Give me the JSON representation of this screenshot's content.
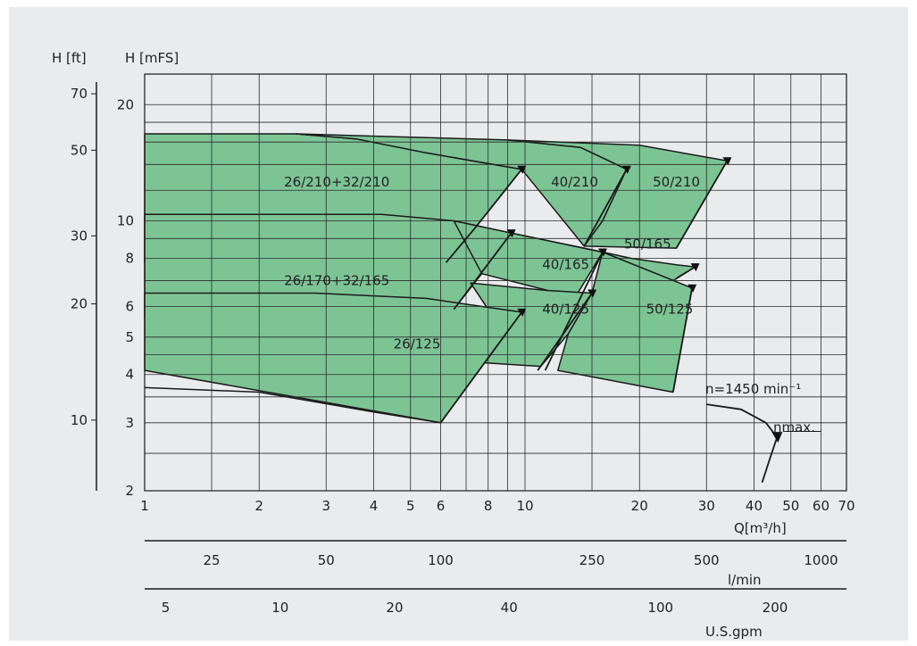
{
  "chart_data": {
    "type": "area",
    "title": "",
    "speed_label": "n=1450  min⁻¹",
    "eta_label": "ηmax.",
    "y_labels": {
      "ft": "H  [ft]",
      "mfs": "H  [mFS]"
    },
    "x_labels": {
      "m3h": "Q[m³/h]",
      "lmin": "l/min",
      "gpm": "U.S.gpm"
    },
    "x_scale": "log",
    "y_scale": "log",
    "xlim": [
      1,
      70
    ],
    "ylim": [
      2,
      24
    ],
    "grid": true,
    "x_ticks_m3h": [
      "1",
      "2",
      "3",
      "4",
      "5",
      "6",
      "8",
      "10",
      "20",
      "30",
      "40",
      "50",
      "60",
      "70"
    ],
    "y_ticks_mfs": [
      "20",
      "10",
      "8",
      "6",
      "5",
      "4",
      "3",
      "2"
    ],
    "y_ticks_ft": [
      "70",
      "50",
      "30",
      "20",
      "10"
    ],
    "x_ticks_lmin": [
      "25",
      "50",
      "100",
      "250",
      "500",
      "1000"
    ],
    "x_ticks_gpm": [
      "5",
      "10",
      "20",
      "40",
      "100",
      "200"
    ],
    "regions": [
      {
        "name": "26/210+32/210",
        "label_at": [
          3.2,
          12.6
        ],
        "outline": [
          [
            1,
            16.8
          ],
          [
            2.5,
            16.8
          ],
          [
            3.6,
            16.3
          ],
          [
            5.5,
            15
          ],
          [
            9.8,
            13.6
          ],
          [
            7.4,
            9.6
          ],
          [
            6.2,
            7.8
          ],
          [
            1,
            7.8
          ]
        ]
      },
      {
        "name": "40/210",
        "label_at": [
          13.5,
          12.6
        ],
        "outline": [
          [
            2.5,
            16.8
          ],
          [
            9,
            16.2
          ],
          [
            14,
            15.5
          ],
          [
            18.5,
            13.6
          ],
          [
            16,
            10
          ],
          [
            14.3,
            8.6
          ],
          [
            9.8,
            13.6
          ],
          [
            5.5,
            15
          ],
          [
            3.6,
            16.3
          ]
        ]
      },
      {
        "name": "50/210",
        "label_at": [
          25,
          12.6
        ],
        "outline": [
          [
            9,
            16.2
          ],
          [
            20,
            15.7
          ],
          [
            34,
            14.3
          ],
          [
            25,
            8.5
          ],
          [
            14.3,
            8.6
          ],
          [
            16,
            10
          ],
          [
            18.5,
            13.6
          ],
          [
            14,
            15.5
          ]
        ]
      },
      {
        "name": "26/170+32/165",
        "label_at": [
          3.2,
          7.0
        ],
        "outline": [
          [
            1,
            10.4
          ],
          [
            4.2,
            10.4
          ],
          [
            6.5,
            10.0
          ],
          [
            9.2,
            9.3
          ],
          [
            7.7,
            7.3
          ],
          [
            6.5,
            5.9
          ],
          [
            6.2,
            5.6
          ],
          [
            1,
            5.6
          ]
        ]
      },
      {
        "name": "40/165",
        "label_at": [
          12.8,
          7.7
        ],
        "outline": [
          [
            6.5,
            10.0
          ],
          [
            9.2,
            9.3
          ],
          [
            16,
            8.3
          ],
          [
            13.5,
            6.3
          ],
          [
            11.5,
            6.6
          ],
          [
            7.7,
            7.3
          ]
        ]
      },
      {
        "name": "50/165",
        "label_at": [
          21,
          8.7
        ],
        "outline": [
          [
            9.2,
            9.3
          ],
          [
            16,
            8.3
          ],
          [
            19,
            8.0
          ],
          [
            25,
            7.7
          ],
          [
            28,
            7.6
          ],
          [
            24.5,
            7.0
          ],
          [
            17,
            7.6
          ],
          [
            16,
            8.3
          ]
        ]
      },
      {
        "name": "40/125",
        "label_at": [
          12.8,
          5.9
        ],
        "outline": [
          [
            7.2,
            6.9
          ],
          [
            11.5,
            6.6
          ],
          [
            15,
            6.5
          ],
          [
            13,
            5.1
          ],
          [
            11,
            4.2
          ],
          [
            7.5,
            4.3
          ],
          [
            8.6,
            5.3
          ]
        ]
      },
      {
        "name": "50/125",
        "label_at": [
          24,
          5.9
        ],
        "outline": [
          [
            15,
            6.5
          ],
          [
            16,
            8.3
          ],
          [
            27.5,
            6.7
          ],
          [
            24.5,
            3.6
          ],
          [
            12.2,
            4.1
          ],
          [
            13,
            5.1
          ]
        ]
      },
      {
        "name": "26/125",
        "label_at": [
          5.2,
          4.8
        ],
        "outline": [
          [
            1,
            6.5
          ],
          [
            2.8,
            6.5
          ],
          [
            5.5,
            6.3
          ],
          [
            9.8,
            5.8
          ],
          [
            6,
            3.0
          ],
          [
            1,
            4.1
          ]
        ]
      }
    ],
    "base_curve": [
      [
        1,
        3.7
      ],
      [
        2,
        3.6
      ],
      [
        4,
        3.2
      ],
      [
        6,
        3.0
      ]
    ],
    "dividers": [
      [
        [
          9.8,
          13.6
        ],
        [
          7.4,
          9.6
        ],
        [
          6.2,
          7.8
        ]
      ],
      [
        [
          18.5,
          13.6
        ],
        [
          14.3,
          8.6
        ]
      ],
      [
        [
          34,
          14.3
        ],
        [
          25,
          8.5
        ]
      ],
      [
        [
          9.2,
          9.3
        ],
        [
          6.5,
          5.9
        ]
      ],
      [
        [
          16,
          8.3
        ],
        [
          11.3,
          4.1
        ]
      ],
      [
        [
          28,
          7.6
        ],
        [
          25,
          7.1
        ]
      ],
      [
        [
          27.5,
          6.7
        ],
        [
          24.5,
          3.6
        ]
      ],
      [
        [
          15,
          6.5
        ],
        [
          10.8,
          4.1
        ]
      ],
      [
        [
          9.8,
          5.8
        ],
        [
          6,
          3.0
        ]
      ]
    ],
    "eta_marks": [
      [
        9.8,
        13.6
      ],
      [
        18.5,
        13.6
      ],
      [
        34,
        14.3
      ],
      [
        9.2,
        9.3
      ],
      [
        16,
        8.3
      ],
      [
        28,
        7.6
      ],
      [
        15,
        6.5
      ],
      [
        27.5,
        6.7
      ],
      [
        9.8,
        5.8
      ]
    ],
    "legend_curve": [
      [
        30,
        3.35
      ],
      [
        37,
        3.25
      ],
      [
        43,
        3.0
      ],
      [
        46,
        2.75
      ],
      [
        44.5,
        2.5
      ],
      [
        42,
        2.1
      ]
    ]
  }
}
